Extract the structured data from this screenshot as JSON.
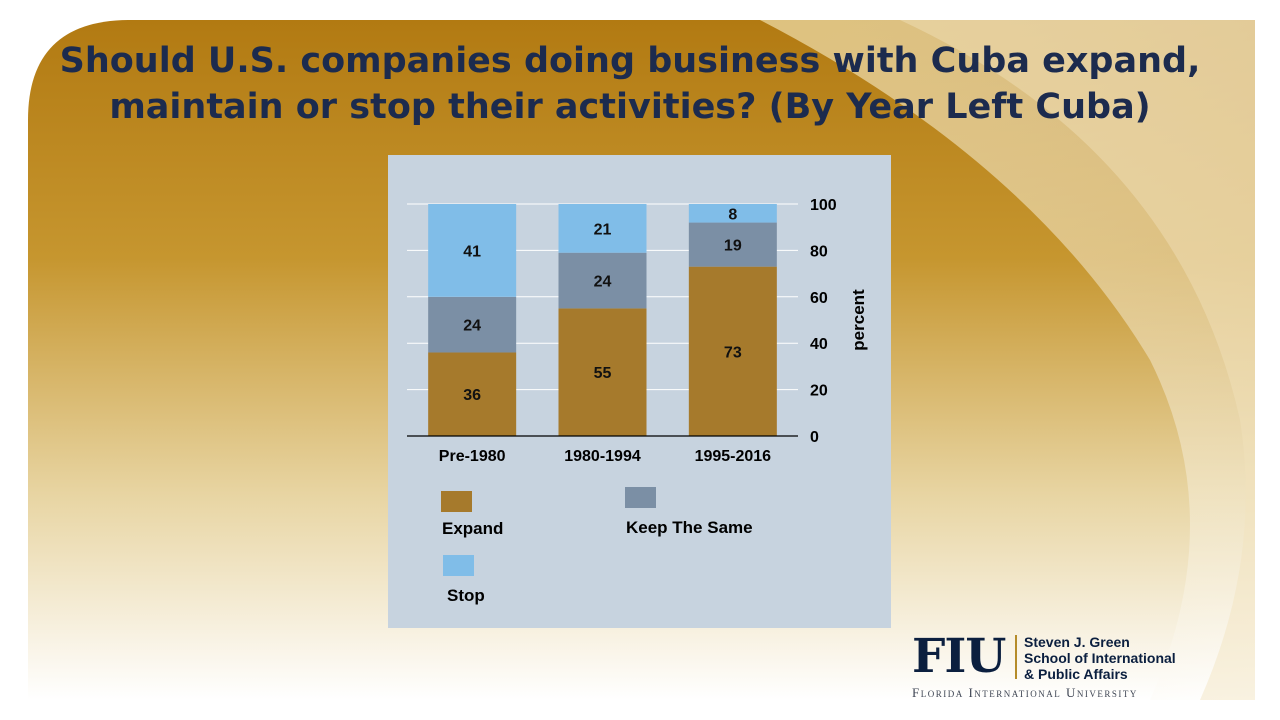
{
  "title": {
    "line1": "Should U.S. companies doing business with Cuba expand,",
    "line2": "maintain or stop their activities? (By Year Left Cuba)"
  },
  "colors": {
    "background_gold": "#b6801a",
    "background_light": "#e9d39a",
    "title": "#1c2b4e",
    "chart_panel": "#c7d3df",
    "expand": "#a67a2c",
    "keep": "#7b8fa5",
    "stop": "#80bde8"
  },
  "chart_data": {
    "type": "bar",
    "stacked": true,
    "categories": [
      "Pre-1980",
      "1980-1994",
      "1995-2016"
    ],
    "series": [
      {
        "name": "Expand",
        "values": [
          36,
          55,
          73
        ],
        "color": "#a67a2c"
      },
      {
        "name": "Keep The Same",
        "values": [
          24,
          24,
          19
        ],
        "color": "#7b8fa5"
      },
      {
        "name": "Stop",
        "values": [
          41,
          21,
          8
        ],
        "color": "#80bde8"
      }
    ],
    "ylabel": "percent",
    "ylim": [
      0,
      100
    ],
    "yticks": [
      0,
      20,
      40,
      60,
      80,
      100
    ],
    "y_axis_side": "right",
    "grid": true,
    "legend_position": "bottom"
  },
  "logo": {
    "mark": "FIU",
    "school_line1": "Steven J. Green",
    "school_line2": "School of International",
    "school_line3": "& Public Affairs",
    "university": "Florida International University"
  }
}
